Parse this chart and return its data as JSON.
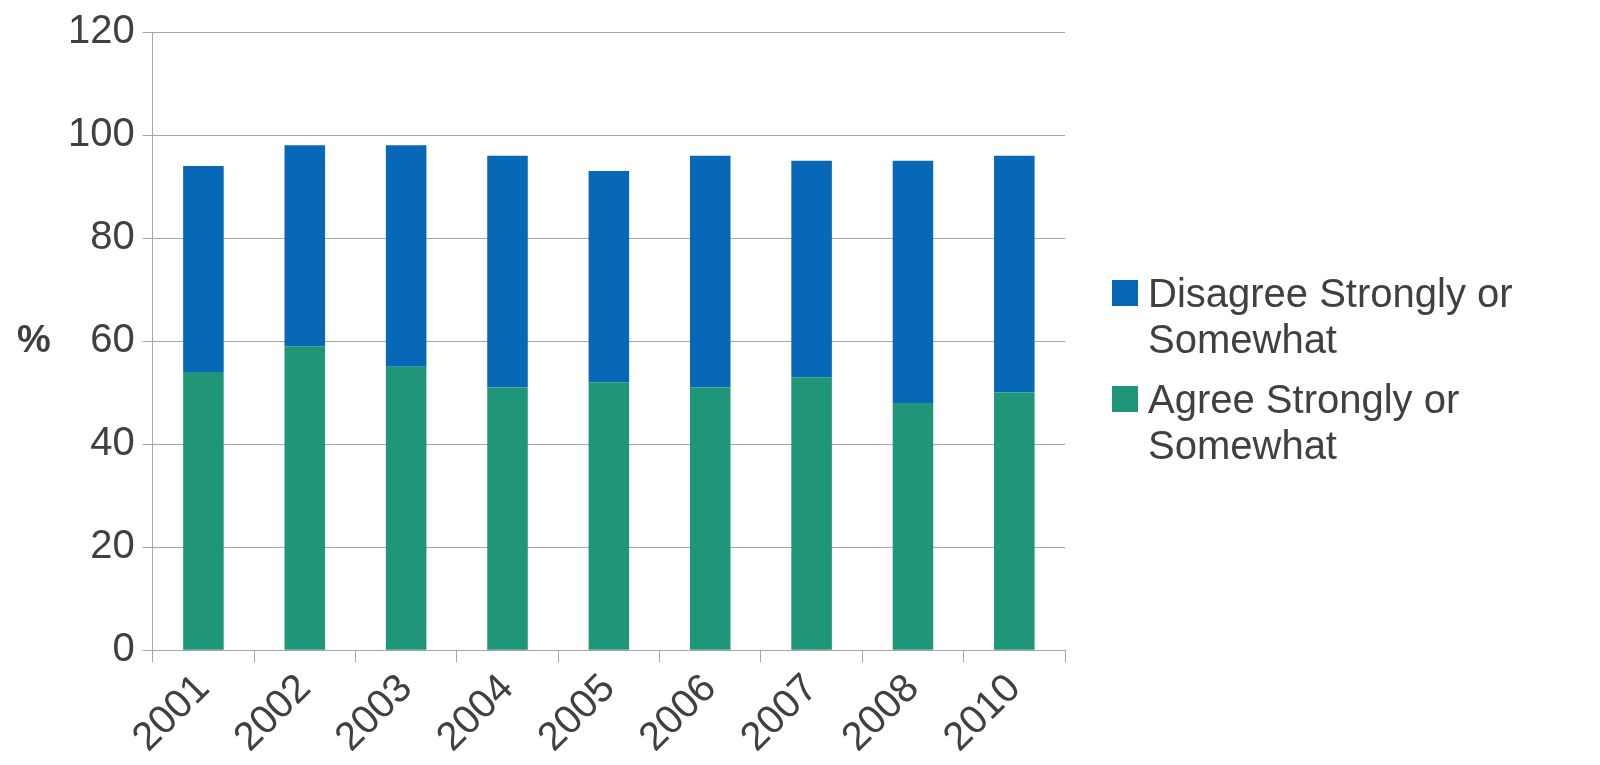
{
  "chart_data": {
    "type": "bar",
    "ylabel": "%",
    "stacked": true,
    "categories": [
      "2001",
      "2002",
      "2003",
      "2004",
      "2005",
      "2006",
      "2007",
      "2008",
      "2010"
    ],
    "series": [
      {
        "name": "Agree Strongly or Somewhat",
        "color": "#209679",
        "values": [
          54,
          59,
          55,
          51,
          52,
          51,
          53,
          48,
          50
        ]
      },
      {
        "name": "Disagree Strongly or Somewhat",
        "color": "#0868b8",
        "values": [
          40,
          39,
          43,
          45,
          41,
          45,
          42,
          47,
          46
        ]
      }
    ],
    "ylim": [
      0,
      120
    ],
    "yticks": [
      0,
      20,
      40,
      60,
      80,
      100,
      120
    ],
    "grid": "y",
    "legend": "right"
  }
}
